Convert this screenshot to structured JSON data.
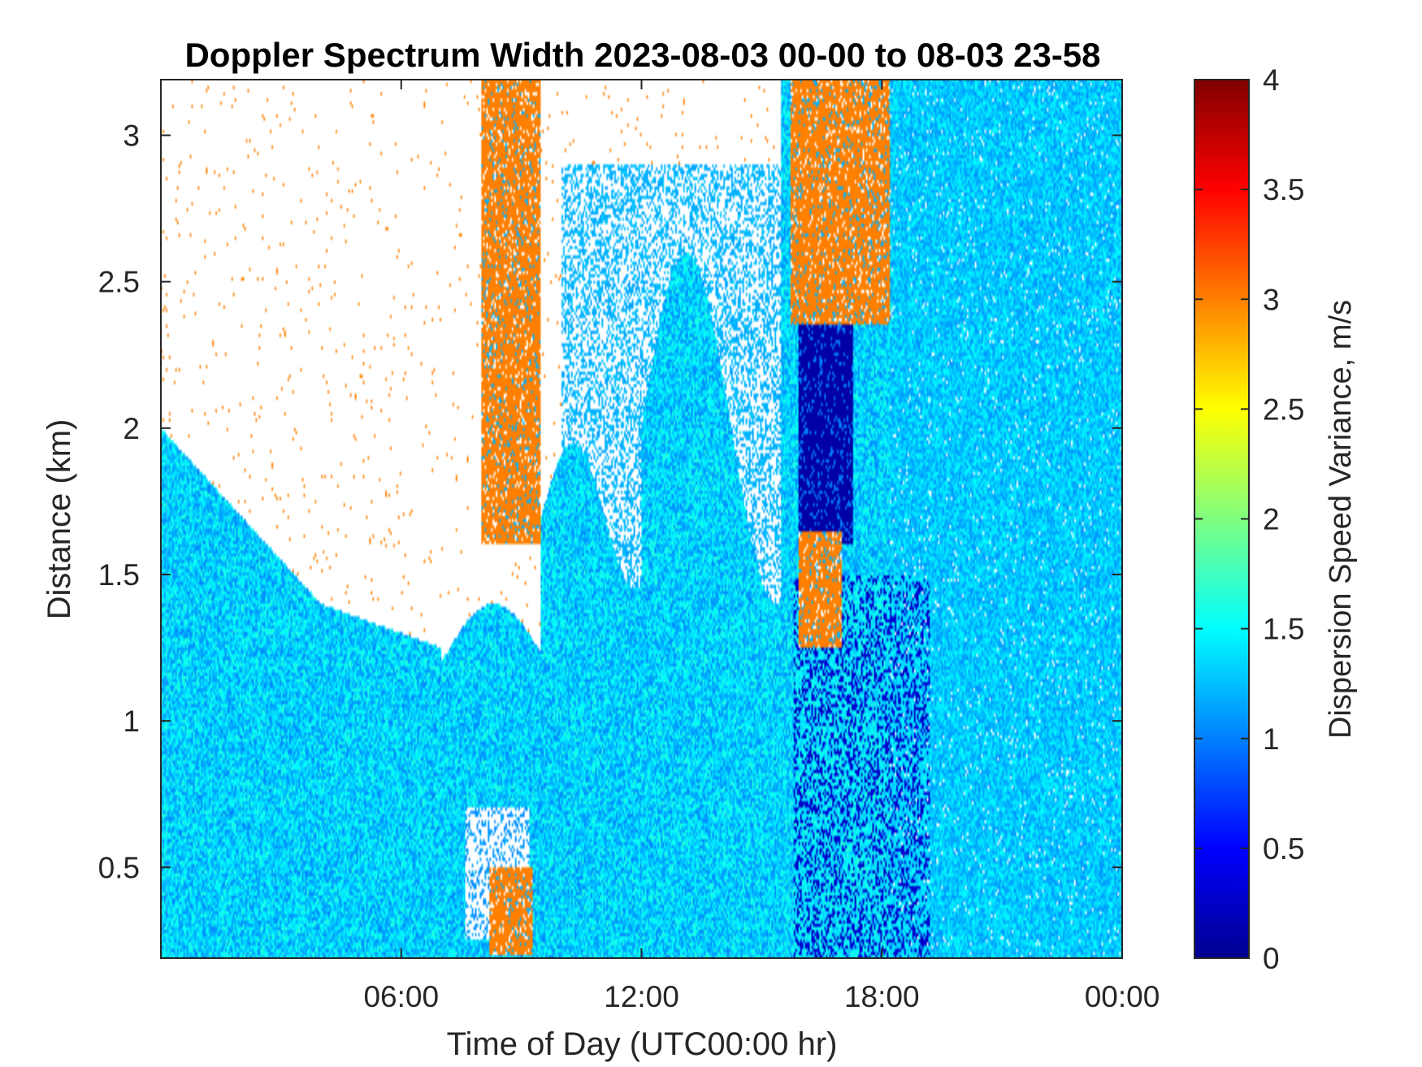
{
  "chart_data": {
    "type": "heatmap",
    "title": "Doppler Spectrum Width 2023-08-03 00-00 to 08-03 23-58",
    "xlabel": "Time of Day (UTC00:00 hr)",
    "ylabel": "Distance (km)",
    "x_range_hours": [
      0,
      24
    ],
    "x_ticks": [
      {
        "value": 6,
        "label": "06:00"
      },
      {
        "value": 12,
        "label": "12:00"
      },
      {
        "value": 18,
        "label": "18:00"
      },
      {
        "value": 24,
        "label": "00:00"
      }
    ],
    "ylim": [
      0.19,
      3.19
    ],
    "y_ticks": [
      {
        "value": 0.5,
        "label": "0.5"
      },
      {
        "value": 1,
        "label": "1"
      },
      {
        "value": 1.5,
        "label": "1.5"
      },
      {
        "value": 2,
        "label": "2"
      },
      {
        "value": 2.5,
        "label": "2.5"
      },
      {
        "value": 3,
        "label": "3"
      }
    ],
    "colorbar": {
      "label": "Dispersion Speed Variance, m/s",
      "colormap": "jet",
      "range": [
        0,
        4
      ],
      "ticks": [
        {
          "value": 0,
          "label": "0"
        },
        {
          "value": 0.5,
          "label": "0.5"
        },
        {
          "value": 1,
          "label": "1"
        },
        {
          "value": 1.5,
          "label": "1.5"
        },
        {
          "value": 2,
          "label": "2"
        },
        {
          "value": 2.5,
          "label": "2.5"
        },
        {
          "value": 3,
          "label": "3"
        },
        {
          "value": 3.5,
          "label": "3.5"
        },
        {
          "value": 4,
          "label": "4"
        }
      ]
    },
    "grid": false,
    "regions": [
      {
        "desc": "background boundary layer",
        "time_range": [
          0,
          24
        ],
        "dist_range": [
          0.19,
          1.7
        ],
        "value": 1.2
      },
      {
        "desc": "elevated wide-spectrum cloud layer",
        "time_range": [
          8.0,
          9.5
        ],
        "dist_range": [
          1.6,
          3.19
        ],
        "value": 3.0
      },
      {
        "desc": "elevated wide-spectrum cloud layer",
        "time_range": [
          15.7,
          18.2
        ],
        "dist_range": [
          2.3,
          3.19
        ],
        "value": 3.0
      },
      {
        "desc": "low-variance core",
        "time_range": [
          15.9,
          17.3
        ],
        "dist_range": [
          1.6,
          2.4
        ],
        "value": 0.2
      },
      {
        "desc": "low-variance columns",
        "time_range": [
          15.8,
          19.0
        ],
        "dist_range": [
          0.19,
          1.5
        ],
        "value": 0.3
      },
      {
        "desc": "full-column returns",
        "time_range": [
          18.0,
          24
        ],
        "dist_range": [
          0.19,
          3.19
        ],
        "value": 1.3
      }
    ]
  }
}
